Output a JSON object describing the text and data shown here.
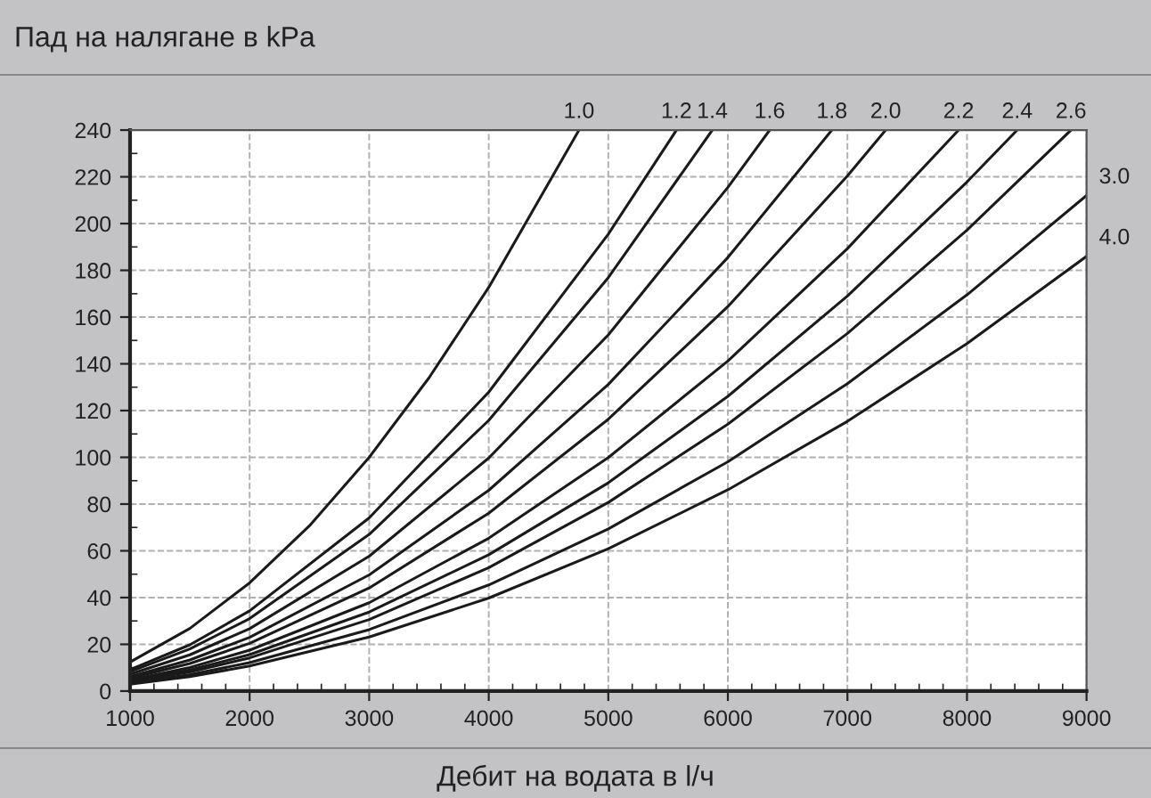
{
  "chart_data": {
    "type": "line",
    "title": "Пад на налягане в kPa",
    "xlabel": "Дебит на водата в l/ч",
    "xlim": [
      1000,
      9000
    ],
    "xticks": [
      1000,
      2000,
      3000,
      4000,
      5000,
      6000,
      7000,
      8000,
      9000
    ],
    "ylim": [
      0,
      240
    ],
    "yticks": [
      0,
      20,
      40,
      60,
      80,
      100,
      120,
      140,
      160,
      180,
      200,
      220,
      240
    ],
    "grid": true,
    "line_style": "solid",
    "marker": "none",
    "series": [
      {
        "name": "1.0",
        "color": "#1a1a1a",
        "x": [
          1000,
          1500,
          2000,
          2500,
          3000,
          3500,
          4000,
          4755
        ],
        "values": [
          12.4,
          26.8,
          46.3,
          70.7,
          100,
          134,
          172.7,
          240
        ]
      },
      {
        "name": "1.2",
        "color": "#1a1a1a",
        "x": [
          1000,
          1500,
          2000,
          3000,
          4000,
          5000,
          5570
        ],
        "values": [
          9.2,
          19.8,
          34.3,
          74.1,
          127.9,
          195.5,
          240
        ]
      },
      {
        "name": "1.4",
        "color": "#1a1a1a",
        "x": [
          1000,
          1500,
          2000,
          3000,
          4000,
          5000,
          5870
        ],
        "values": [
          8.3,
          18.0,
          31.0,
          67.0,
          115.8,
          176.9,
          240
        ]
      },
      {
        "name": "1.6",
        "color": "#1a1a1a",
        "x": [
          1000,
          1500,
          2000,
          3000,
          4000,
          5000,
          6000,
          6350
        ],
        "values": [
          7.2,
          15.5,
          26.7,
          57.7,
          99.7,
          152.4,
          215.5,
          240
        ]
      },
      {
        "name": "1.8",
        "color": "#1a1a1a",
        "x": [
          1000,
          1500,
          2000,
          3000,
          4000,
          5000,
          6000,
          6870
        ],
        "values": [
          6.2,
          13.3,
          23.0,
          49.7,
          85.9,
          131.2,
          185.5,
          240
        ]
      },
      {
        "name": "2.0",
        "color": "#1a1a1a",
        "x": [
          1000,
          1500,
          2000,
          3000,
          4000,
          5000,
          6000,
          7000,
          7320
        ],
        "values": [
          5.5,
          11.8,
          20.4,
          44.1,
          76.1,
          116.3,
          164.5,
          220.4,
          240
        ]
      },
      {
        "name": "2.2",
        "color": "#1a1a1a",
        "x": [
          1000,
          1500,
          2000,
          3000,
          4000,
          5000,
          6000,
          7000,
          7930
        ],
        "values": [
          4.7,
          10.1,
          17.5,
          37.8,
          65.4,
          99.9,
          141.2,
          189.3,
          240
        ]
      },
      {
        "name": "2.4",
        "color": "#1a1a1a",
        "x": [
          1000,
          1500,
          2000,
          3000,
          4000,
          5000,
          6000,
          7000,
          8000,
          8420
        ],
        "values": [
          4.2,
          9.0,
          15.6,
          33.8,
          58.3,
          89.1,
          126.1,
          169.0,
          217.8,
          240
        ]
      },
      {
        "name": "2.6",
        "color": "#1a1a1a",
        "x": [
          1000,
          1500,
          2000,
          3000,
          4000,
          5000,
          6000,
          7000,
          8000,
          8870
        ],
        "values": [
          3.8,
          8.2,
          14.2,
          30.6,
          52.8,
          80.7,
          114.2,
          153.0,
          197.2,
          240
        ]
      },
      {
        "name": "3.0",
        "color": "#1a1a1a",
        "x": [
          1000,
          1500,
          2000,
          3000,
          4000,
          5000,
          6000,
          7000,
          8000,
          9000
        ],
        "values": [
          3.3,
          7.0,
          12.2,
          26.3,
          45.4,
          69.4,
          98.1,
          131.5,
          169.5,
          212
        ]
      },
      {
        "name": "4.0",
        "color": "#1a1a1a",
        "x": [
          1000,
          1500,
          2000,
          3000,
          4000,
          5000,
          6000,
          7000,
          8000,
          9000
        ],
        "values": [
          2.9,
          6.2,
          10.7,
          23.1,
          39.8,
          60.9,
          86.1,
          115.4,
          148.7,
          186
        ]
      }
    ]
  }
}
